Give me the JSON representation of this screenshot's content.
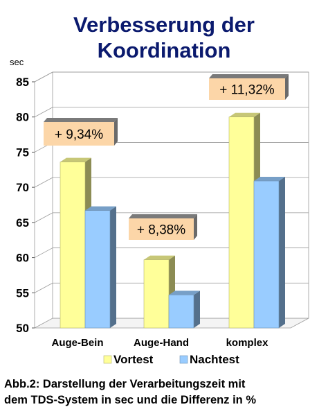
{
  "chart_data": {
    "type": "bar",
    "title_lines": [
      "Verbesserung der",
      "Koordination"
    ],
    "ylabel": "sec",
    "ylim": [
      50,
      85
    ],
    "yticks": [
      50,
      55,
      60,
      65,
      70,
      75,
      80,
      85
    ],
    "categories": [
      "Auge-Bein",
      "Auge-Hand",
      "komplex"
    ],
    "series": [
      {
        "name": "Vortest",
        "values": [
          73.6,
          59.7,
          80.0
        ],
        "color": "#ffff99"
      },
      {
        "name": "Nachtest",
        "values": [
          66.7,
          54.7,
          70.9
        ],
        "color": "#99ccff"
      }
    ],
    "annotations": [
      "+ 9,34%",
      "+ 8,38%",
      "+ 11,32%"
    ],
    "annotation_color": "#fcd6a8",
    "grid": true,
    "legend_position": "bottom"
  },
  "caption": {
    "line1": "Abb.2: Darstellung der Verarbeitungszeit mit",
    "line2": "dem TDS-System in sec und die Differenz in %"
  }
}
